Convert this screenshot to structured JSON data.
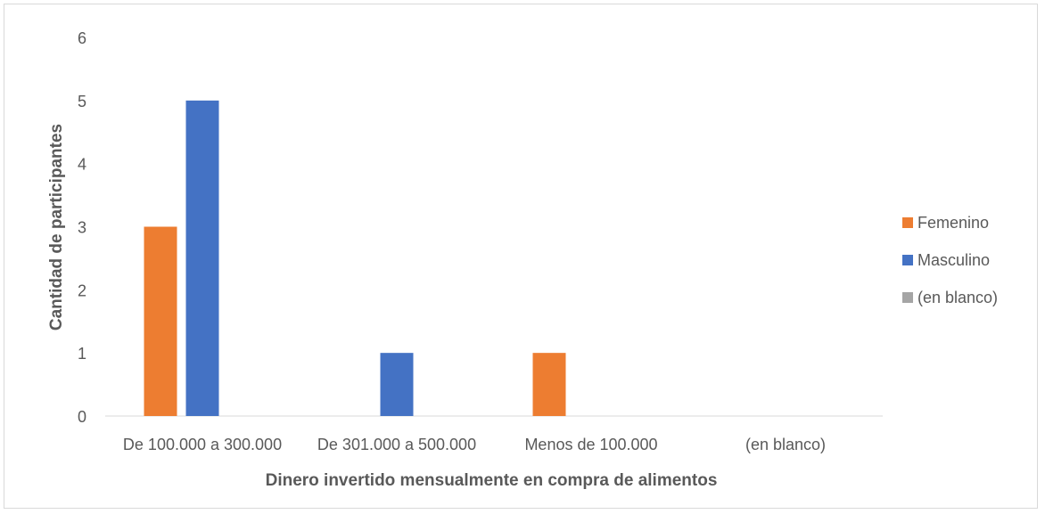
{
  "chart_data": {
    "type": "bar",
    "categories": [
      "De 100.000 a 300.000",
      "De 301.000 a 500.000",
      "Menos de 100.000",
      "(en blanco)"
    ],
    "series": [
      {
        "name": "Femenino",
        "values": [
          3,
          0,
          1,
          0
        ],
        "color": "#ed7d31"
      },
      {
        "name": "Masculino",
        "values": [
          5,
          1,
          0,
          0
        ],
        "color": "#4472c4"
      },
      {
        "name": "(en blanco)",
        "values": [
          0,
          0,
          0,
          0
        ],
        "color": "#a5a5a5"
      }
    ],
    "title": "",
    "xlabel": "Dinero invertido mensualmente en compra de alimentos",
    "ylabel": "Cantidad de participantes",
    "ylim": [
      0,
      6
    ],
    "yticks": [
      "0",
      "1",
      "2",
      "3",
      "4",
      "5",
      "6"
    ],
    "grid": false,
    "legend_position": "right"
  }
}
